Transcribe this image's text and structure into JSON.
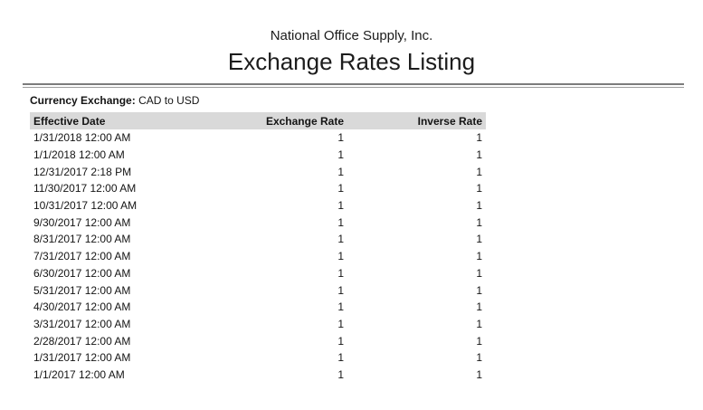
{
  "report": {
    "company_name": "National Office Supply, Inc.",
    "title": "Exchange Rates Listing",
    "currency_exchange_label": "Currency Exchange:",
    "currency_exchange_value": "CAD to USD"
  },
  "table": {
    "columns": [
      "Effective Date",
      "Exchange Rate",
      "Inverse Rate"
    ],
    "rows": [
      {
        "effective_date": "1/31/2018 12:00 AM",
        "exchange_rate": "1",
        "inverse_rate": "1"
      },
      {
        "effective_date": "1/1/2018 12:00 AM",
        "exchange_rate": "1",
        "inverse_rate": "1"
      },
      {
        "effective_date": "12/31/2017 2:18 PM",
        "exchange_rate": "1",
        "inverse_rate": "1"
      },
      {
        "effective_date": "11/30/2017 12:00 AM",
        "exchange_rate": "1",
        "inverse_rate": "1"
      },
      {
        "effective_date": "10/31/2017 12:00 AM",
        "exchange_rate": "1",
        "inverse_rate": "1"
      },
      {
        "effective_date": "9/30/2017 12:00 AM",
        "exchange_rate": "1",
        "inverse_rate": "1"
      },
      {
        "effective_date": "8/31/2017 12:00 AM",
        "exchange_rate": "1",
        "inverse_rate": "1"
      },
      {
        "effective_date": "7/31/2017 12:00 AM",
        "exchange_rate": "1",
        "inverse_rate": "1"
      },
      {
        "effective_date": "6/30/2017 12:00 AM",
        "exchange_rate": "1",
        "inverse_rate": "1"
      },
      {
        "effective_date": "5/31/2017 12:00 AM",
        "exchange_rate": "1",
        "inverse_rate": "1"
      },
      {
        "effective_date": "4/30/2017 12:00 AM",
        "exchange_rate": "1",
        "inverse_rate": "1"
      },
      {
        "effective_date": "3/31/2017 12:00 AM",
        "exchange_rate": "1",
        "inverse_rate": "1"
      },
      {
        "effective_date": "2/28/2017 12:00 AM",
        "exchange_rate": "1",
        "inverse_rate": "1"
      },
      {
        "effective_date": "1/31/2017 12:00 AM",
        "exchange_rate": "1",
        "inverse_rate": "1"
      },
      {
        "effective_date": "1/1/2017 12:00 AM",
        "exchange_rate": "1",
        "inverse_rate": "1"
      }
    ]
  },
  "colors": {
    "header_band": "#d9d9d9",
    "rule_dark": "#7c7c7c",
    "rule_light": "#9c9c9c",
    "text": "#141414"
  }
}
